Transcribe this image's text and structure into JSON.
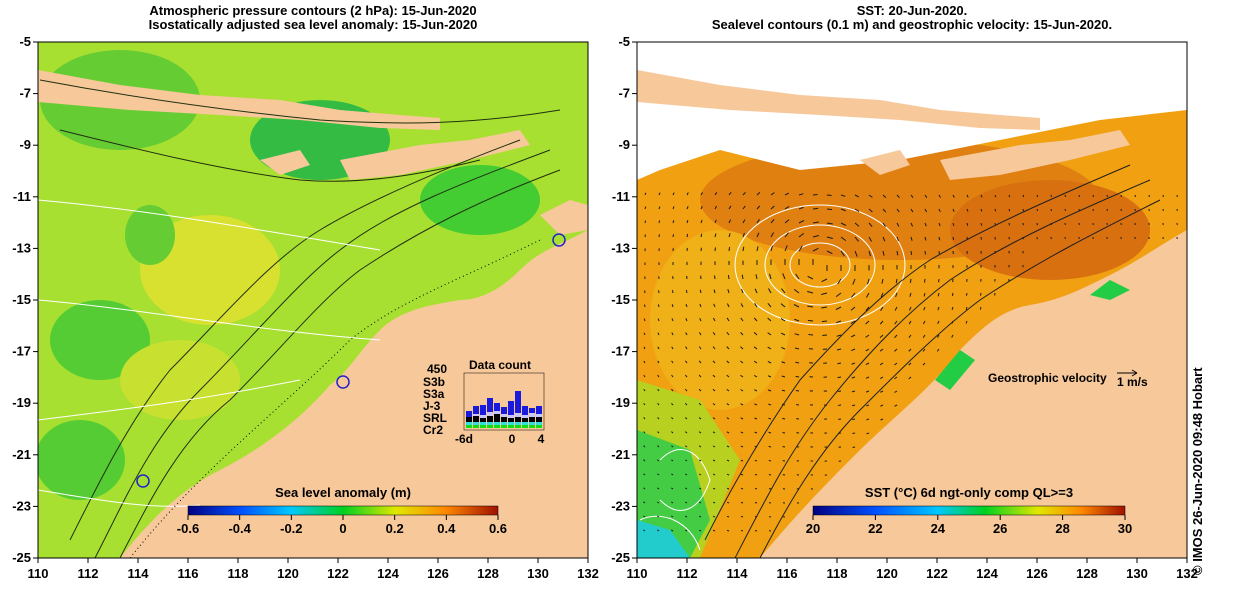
{
  "left_panel": {
    "title_line1": "Atmospheric pressure contours (2 hPa): 15-Jun-2020",
    "title_line2": "Isostatically adjusted sea level anomaly: 15-Jun-2020",
    "colorbar_label": "Sea level anomaly (m)",
    "colorbar_ticks": [
      "-0.6",
      "-0.4",
      "-0.2",
      "0",
      "0.2",
      "0.4",
      "0.6"
    ],
    "inset": {
      "title": "Data count",
      "ymax": "450",
      "satellites": [
        "S3b",
        "S3a",
        "J-3",
        "SRL",
        "Cr2"
      ],
      "sat_colors": [
        "#1a1adc",
        "#c8c8ff",
        "#000000",
        "#33dddd",
        "#11dd11"
      ],
      "xticks": [
        "-6d",
        "0",
        "4"
      ]
    }
  },
  "right_panel": {
    "title_line1": "SST: 20-Jun-2020.",
    "title_line2": "Sealevel contours (0.1 m) and geostrophic velocity: 15-Jun-2020.",
    "colorbar_label": "SST (°C) 6d ngt-only comp QL>=3",
    "colorbar_ticks": [
      "20",
      "22",
      "24",
      "26",
      "28",
      "30"
    ],
    "velocity_label": "Geostrophic velocity",
    "velocity_scale": "1 m/s"
  },
  "axes": {
    "lon_ticks": [
      "110",
      "112",
      "114",
      "116",
      "118",
      "120",
      "122",
      "124",
      "126",
      "128",
      "130",
      "132"
    ],
    "lat_ticks": [
      "-5",
      "-7",
      "-9",
      "-11",
      "-13",
      "-15",
      "-17",
      "-19",
      "-21",
      "-23",
      "-25"
    ]
  },
  "credit": "© IMOS 26-Jun-2020 09:48 Hobart",
  "colors": {
    "land": "#f7c89a",
    "sla_bg": "#a8e032",
    "sla_low": "#33cc33",
    "sla_high": "#e8e020",
    "sst_bg": "#f0a010",
    "sst_high": "#e08010",
    "sst_low": "#22dd22",
    "cloud": "#ffffff"
  }
}
